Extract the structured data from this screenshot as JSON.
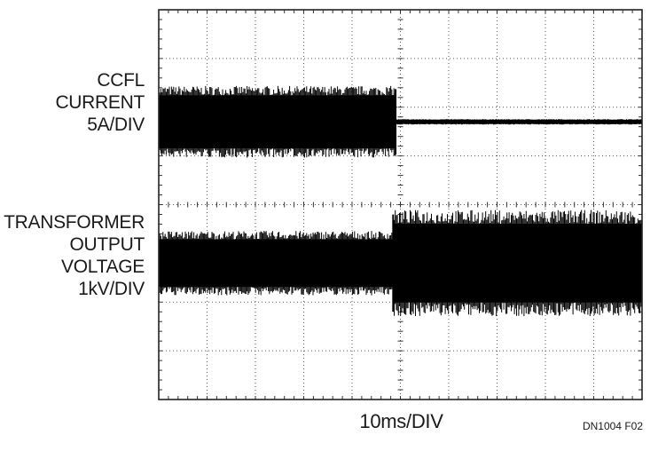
{
  "chart_data": {
    "type": "line",
    "title": "",
    "xlabel": "10ms/DIV",
    "ylabel": "",
    "grid": true,
    "divisions": {
      "x": 10,
      "y": 8
    },
    "x_unit": "ms",
    "series": [
      {
        "name": "CCFL CURRENT 5A/DIV",
        "label_lines": [
          "CCFL",
          "CURRENT",
          "5A/DIV"
        ],
        "unit": "A",
        "volts_per_div": 5,
        "segments": [
          {
            "x_start": 0,
            "x_end": 49,
            "center": 0,
            "peak_to_peak": 6.4
          },
          {
            "x_start": 49,
            "x_end": 100,
            "center": 0,
            "peak_to_peak": 0.5
          }
        ]
      },
      {
        "name": "TRANSFORMER OUTPUT VOLTAGE 1kV/DIV",
        "label_lines": [
          "TRANSFORMER",
          "OUTPUT",
          "VOLTAGE",
          "1kV/DIV"
        ],
        "unit": "kV",
        "volts_per_div": 1,
        "segments": [
          {
            "x_start": 0,
            "x_end": 48.5,
            "center": 0,
            "peak_to_peak": 1.15
          },
          {
            "x_start": 48.5,
            "x_end": 100,
            "center": 0,
            "peak_to_peak": 1.9
          }
        ]
      }
    ]
  },
  "figure_id": "DN1004 F02"
}
